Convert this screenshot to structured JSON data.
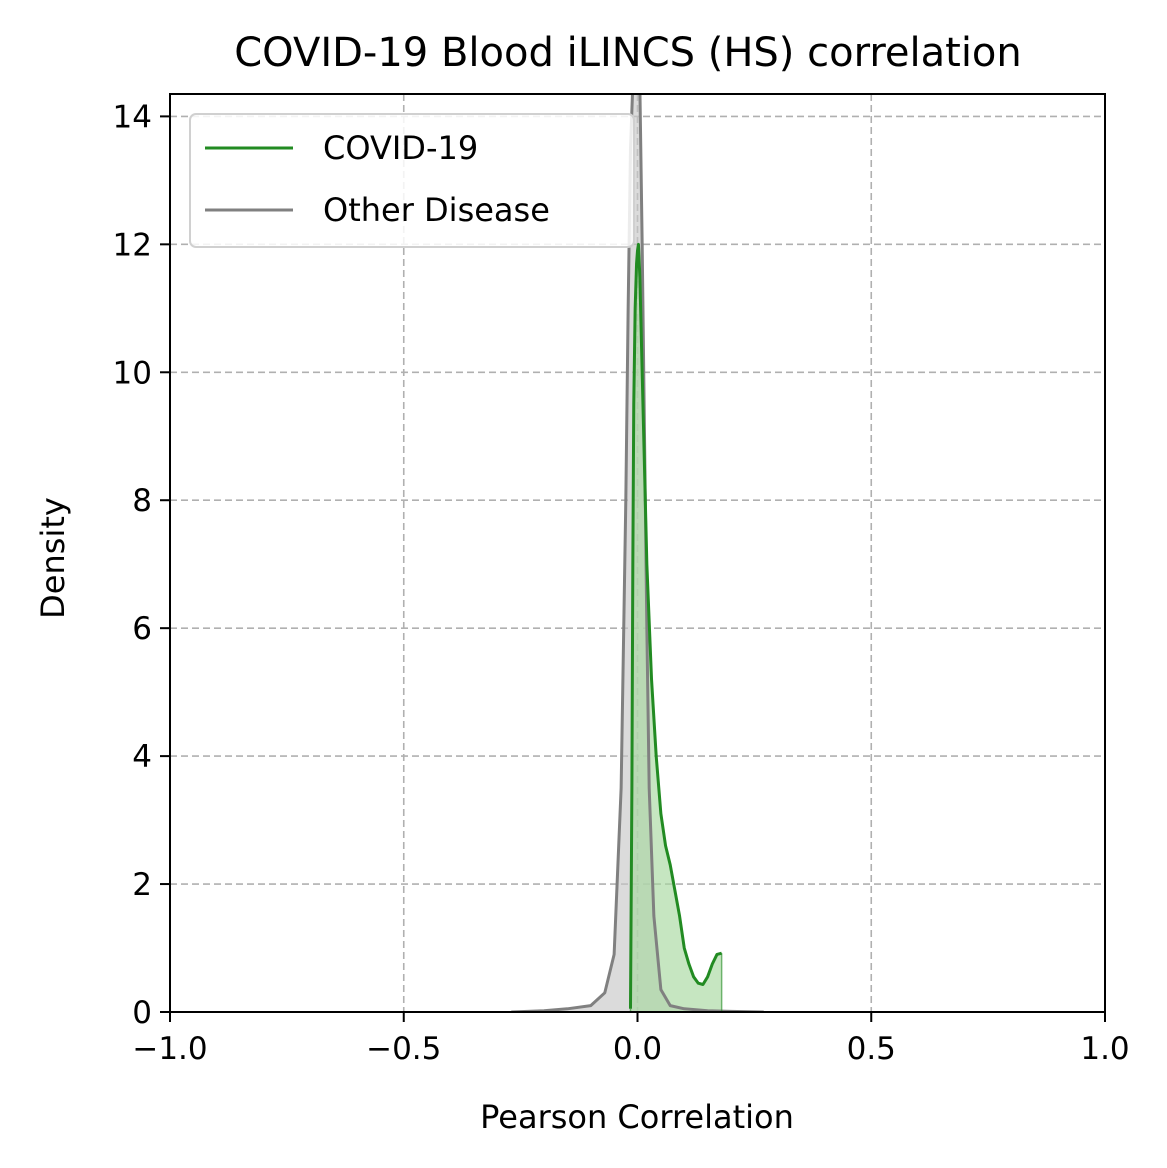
{
  "chart_data": {
    "type": "area",
    "title": "COVID-19 Blood iLINCS (HS) correlation",
    "xlabel": "Pearson Correlation",
    "ylabel": "Density",
    "xlim": [
      -1.0,
      1.0
    ],
    "ylim": [
      0,
      14.35
    ],
    "xticks": [
      -1.0,
      -0.5,
      0.0,
      0.5,
      1.0
    ],
    "xtick_labels": [
      "−1.0",
      "−0.5",
      "0.0",
      "0.5",
      "1.0"
    ],
    "yticks": [
      0,
      2,
      4,
      6,
      8,
      10,
      12,
      14
    ],
    "ytick_labels": [
      "0",
      "2",
      "4",
      "6",
      "8",
      "10",
      "12",
      "14"
    ],
    "grid": true,
    "legend_position": "top-left",
    "series": [
      {
        "name": "COVID-19",
        "color": "#228b22",
        "fill": "#a8d8a0",
        "x": [
          -0.015,
          -0.012,
          -0.01,
          -0.008,
          -0.005,
          -0.002,
          0.0,
          0.002,
          0.005,
          0.01,
          0.015,
          0.02,
          0.03,
          0.04,
          0.05,
          0.06,
          0.07,
          0.08,
          0.09,
          0.1,
          0.11,
          0.12,
          0.13,
          0.14,
          0.15,
          0.16,
          0.17,
          0.18
        ],
        "y": [
          0.05,
          3.5,
          7.0,
          9.5,
          11.0,
          11.7,
          11.9,
          12.0,
          11.5,
          10.0,
          8.5,
          7.0,
          5.2,
          4.0,
          3.1,
          2.6,
          2.3,
          1.9,
          1.5,
          1.0,
          0.75,
          0.55,
          0.45,
          0.43,
          0.55,
          0.75,
          0.9,
          0.92
        ]
      },
      {
        "name": "Other Disease",
        "color": "#808080",
        "fill": "#c8c8c8",
        "x": [
          -0.27,
          -0.2,
          -0.15,
          -0.1,
          -0.07,
          -0.05,
          -0.035,
          -0.025,
          -0.02,
          -0.015,
          -0.01,
          -0.005,
          0.0,
          0.005,
          0.01,
          0.015,
          0.02,
          0.025,
          0.035,
          0.05,
          0.07,
          0.1,
          0.15,
          0.2,
          0.27
        ],
        "y": [
          0.0,
          0.02,
          0.05,
          0.1,
          0.3,
          0.9,
          3.5,
          8.0,
          11.0,
          13.5,
          14.5,
          15.0,
          15.0,
          14.5,
          12.0,
          9.0,
          6.0,
          3.5,
          1.5,
          0.35,
          0.1,
          0.05,
          0.02,
          0.01,
          0.0
        ]
      }
    ]
  }
}
